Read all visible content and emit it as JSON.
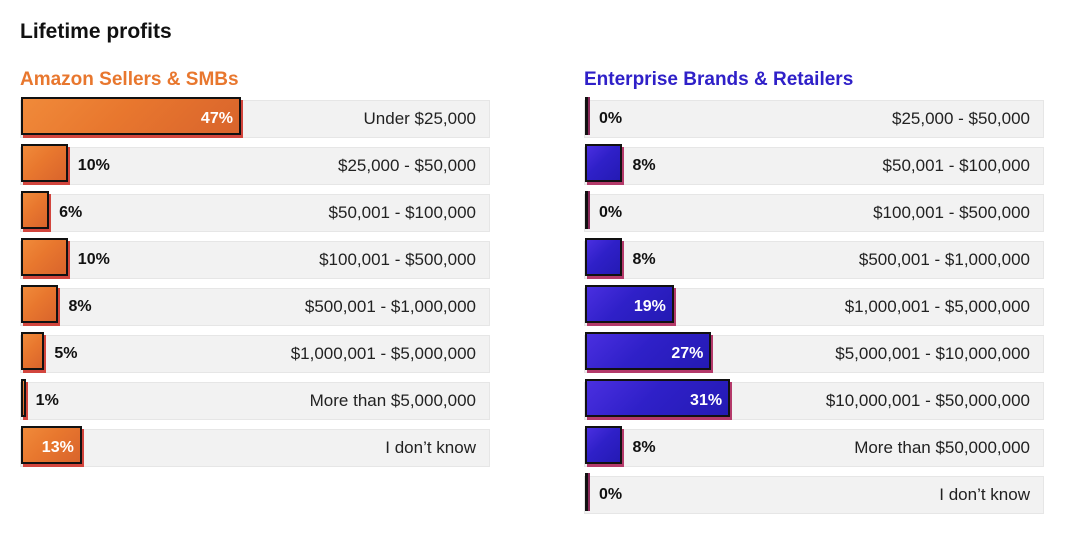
{
  "title": "Lifetime profits",
  "colors": {
    "orange": "#e8772e",
    "blue": "#2f20c8"
  },
  "chart_data": [
    {
      "type": "bar",
      "orientation": "horizontal",
      "title": "Amazon Sellers & SMBs",
      "title_color": "#e8772e",
      "categories": [
        "Under $25,000",
        "$25,000 - $50,000",
        "$50,001 - $100,000",
        "$100,001 - $500,000",
        "$500,001 - $1,000,000",
        "$1,000,001 - $5,000,000",
        "More than $5,000,000",
        "I don’t know"
      ],
      "values": [
        47,
        10,
        6,
        10,
        8,
        5,
        1,
        13
      ],
      "labels": [
        "47%",
        "10%",
        "6%",
        "10%",
        "8%",
        "5%",
        "1%",
        "13%"
      ],
      "xlim": [
        0,
        100
      ],
      "grid": false,
      "legend": "none"
    },
    {
      "type": "bar",
      "orientation": "horizontal",
      "title": "Enterprise Brands & Retailers",
      "title_color": "#2f20c8",
      "categories": [
        "$25,000 - $50,000",
        "$50,001 - $100,000",
        "$100,001 - $500,000",
        "$500,001 - $1,000,000",
        "$1,000,001 - $5,000,000",
        "$5,000,001 - $10,000,000",
        "$10,000,001 - $50,000,000",
        "More than $50,000,000",
        "I don’t know"
      ],
      "values": [
        0,
        8,
        0,
        8,
        19,
        27,
        31,
        8,
        0
      ],
      "labels": [
        "0%",
        "8%",
        "0%",
        "8%",
        "19%",
        "27%",
        "31%",
        "8%",
        "0%"
      ],
      "xlim": [
        0,
        100
      ],
      "grid": false,
      "legend": "none"
    }
  ]
}
